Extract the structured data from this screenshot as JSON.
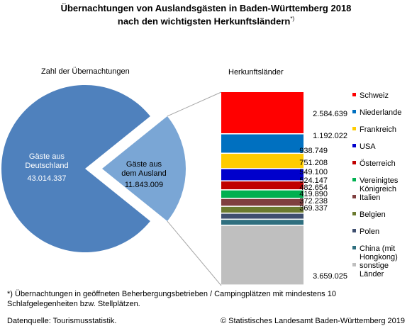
{
  "title": {
    "line1": "Übernachtungen von Auslandsgästen in Baden-Württemberg 2018",
    "line2": "nach den wichtigsten Herkunftsländern",
    "marker": "*)"
  },
  "chart_data": [
    {
      "type": "pie",
      "title": "Zahl der Übernachtungen",
      "slices": [
        {
          "label": [
            "Gäste aus",
            "Deutschland"
          ],
          "value_label": "43.014.337",
          "value": 43014337,
          "color": "#4f81bd"
        },
        {
          "label": [
            "Gäste aus",
            "dem Ausland"
          ],
          "value_label": "11.843.009",
          "value": 11843009,
          "color": "#7aa6d5",
          "exploded": true
        }
      ]
    },
    {
      "type": "bar",
      "subtype": "stacked-100",
      "title": "Herkunftsländer",
      "legend_position": "right",
      "series": [
        {
          "name": "Schweiz",
          "value": 2584639,
          "value_label": "2.584.639",
          "color": "#ff0000"
        },
        {
          "name": "Niederlande",
          "value": 1192022,
          "value_label": "1.192.022",
          "color": "#0070c0"
        },
        {
          "name": "Frankreich",
          "value": 938749,
          "value_label": "938.749",
          "color": "#ffcc00"
        },
        {
          "name": "USA",
          "value": 751208,
          "value_label": "751.208",
          "color": "#0000cc"
        },
        {
          "name": "Österreich",
          "value": 549100,
          "value_label": "549.100",
          "color": "#c00000"
        },
        {
          "name": "Vereinigtes Königreich",
          "legend_lines": [
            "Vereinigtes",
            "Königreich"
          ],
          "value": 524147,
          "value_label": "524.147",
          "color": "#00b050"
        },
        {
          "name": "Italien",
          "value": 482654,
          "value_label": "482.654",
          "color": "#7f3f3f"
        },
        {
          "name": "Belgien",
          "value": 419890,
          "value_label": "419.890",
          "color": "#6b7a2f"
        },
        {
          "name": "Polen",
          "value": 372238,
          "value_label": "372.238",
          "color": "#3f4f6f"
        },
        {
          "name": "China (mit Hongkong)",
          "legend_lines": [
            "China (mit",
            "Hongkong)"
          ],
          "value": 369337,
          "value_label": "369.337",
          "color": "#2f6f7f"
        },
        {
          "name": "sonstige Länder",
          "legend_lines": [
            "sonstige",
            "Länder"
          ],
          "value": 3659025,
          "value_label": "3.659.025",
          "color": "#bfbfbf"
        }
      ]
    }
  ],
  "footnote": "*) Übernachtungen in geöffneten Beherbergungsbetrieben / Campingplätzen mit mindestens 10 Schlafgelegenheiten bzw. Stellplätzen.",
  "source": "Datenquelle: Tourismusstatistik.",
  "copyright": "© Statistisches Landesamt Baden-Württemberg 2019"
}
